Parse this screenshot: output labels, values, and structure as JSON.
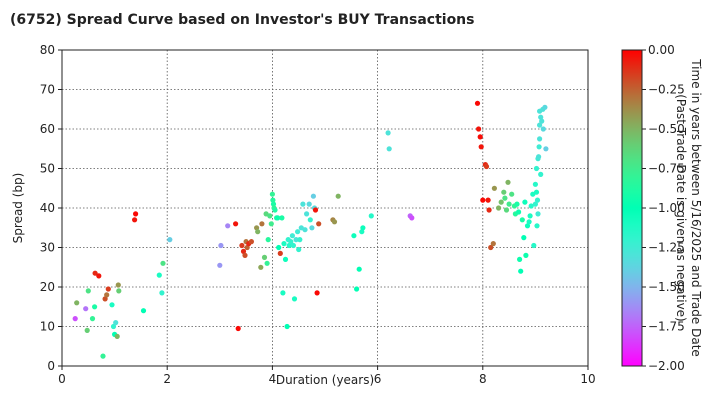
{
  "chart_data": {
    "type": "scatter",
    "title": "(6752)   Spread Curve based on Investor's BUY Transactions",
    "xlabel": "Duration (years)",
    "ylabel": "Spread (bp)",
    "xlim": [
      0,
      10
    ],
    "ylim": [
      0,
      80
    ],
    "x_ticks": [
      "0",
      "2",
      "4",
      "6",
      "8",
      "10"
    ],
    "y_ticks": [
      "0",
      "10",
      "20",
      "30",
      "40",
      "50",
      "60",
      "70",
      "80"
    ],
    "grid": true,
    "colorbar": {
      "label_line1": "Time in years between 5/16/2025 and Trade Date",
      "label_line2": "(Past Trade Date is given as negative)",
      "range": [
        -2.0,
        0.0
      ],
      "ticks": [
        "0.00",
        "−0.25",
        "−0.50",
        "−0.75",
        "−1.00",
        "−1.25",
        "−1.50",
        "−1.75",
        "−2.00"
      ],
      "colormap": "rainbow"
    },
    "points": [
      [
        0.25,
        12.0,
        -1.8
      ],
      [
        0.28,
        16.0,
        -0.5
      ],
      [
        0.45,
        14.5,
        -1.7
      ],
      [
        0.48,
        9.0,
        -0.6
      ],
      [
        0.5,
        19.0,
        -0.7
      ],
      [
        0.58,
        12.0,
        -0.8
      ],
      [
        0.62,
        15.0,
        -0.9
      ],
      [
        0.63,
        23.5,
        -0.1
      ],
      [
        0.7,
        22.8,
        -0.05
      ],
      [
        0.78,
        2.5,
        -0.8
      ],
      [
        0.82,
        17.0,
        -0.2
      ],
      [
        0.85,
        18.0,
        -0.3
      ],
      [
        0.88,
        19.5,
        -0.15
      ],
      [
        0.95,
        15.5,
        -1.1
      ],
      [
        0.98,
        10.0,
        -1.2
      ],
      [
        1.0,
        8.0,
        -1.0
      ],
      [
        1.02,
        11.0,
        -1.3
      ],
      [
        1.05,
        7.5,
        -0.5
      ],
      [
        1.07,
        20.5,
        -0.4
      ],
      [
        1.08,
        19.0,
        -0.6
      ],
      [
        1.38,
        37.0,
        -0.05
      ],
      [
        1.4,
        38.5,
        -0.02
      ],
      [
        1.55,
        14.0,
        -1.0
      ],
      [
        1.85,
        23.0,
        -1.1
      ],
      [
        1.9,
        18.5,
        -1.2
      ],
      [
        1.92,
        26.0,
        -0.7
      ],
      [
        2.05,
        32.0,
        -1.4
      ],
      [
        3.0,
        25.5,
        -1.6
      ],
      [
        3.02,
        30.5,
        -1.6
      ],
      [
        3.15,
        35.5,
        -1.65
      ],
      [
        3.3,
        36.0,
        -0.05
      ],
      [
        3.35,
        9.5,
        -0.02
      ],
      [
        3.42,
        30.5,
        -0.15
      ],
      [
        3.45,
        29.0,
        -0.1
      ],
      [
        3.48,
        28.0,
        -0.2
      ],
      [
        3.5,
        31.5,
        -0.3
      ],
      [
        3.52,
        30.0,
        -0.25
      ],
      [
        3.55,
        31.0,
        -0.1
      ],
      [
        3.6,
        31.5,
        -0.2
      ],
      [
        3.7,
        35.0,
        -0.4
      ],
      [
        3.72,
        34.0,
        -0.5
      ],
      [
        3.78,
        25.0,
        -0.45
      ],
      [
        3.8,
        36.0,
        -0.3
      ],
      [
        3.85,
        27.5,
        -0.6
      ],
      [
        3.88,
        38.5,
        -0.65
      ],
      [
        3.9,
        26.0,
        -0.8
      ],
      [
        3.92,
        32.0,
        -0.85
      ],
      [
        3.95,
        38.0,
        -0.7
      ],
      [
        3.98,
        36.0,
        -0.75
      ],
      [
        4.0,
        43.5,
        -0.8
      ],
      [
        4.01,
        42.0,
        -0.85
      ],
      [
        4.02,
        41.0,
        -0.9
      ],
      [
        4.03,
        40.0,
        -0.82
      ],
      [
        4.05,
        39.5,
        -0.88
      ],
      [
        4.08,
        37.5,
        -0.9
      ],
      [
        4.1,
        37.5,
        -0.95
      ],
      [
        4.12,
        30.0,
        -1.0
      ],
      [
        4.15,
        28.5,
        -0.15
      ],
      [
        4.18,
        37.5,
        -0.9
      ],
      [
        4.2,
        18.5,
        -1.1
      ],
      [
        4.22,
        31.0,
        -1.1
      ],
      [
        4.25,
        27.0,
        -1.05
      ],
      [
        4.28,
        10.0,
        -1.0
      ],
      [
        4.3,
        32.0,
        -1.2
      ],
      [
        4.32,
        30.5,
        -1.15
      ],
      [
        4.35,
        31.5,
        -1.2
      ],
      [
        4.38,
        33.0,
        -1.25
      ],
      [
        4.4,
        30.5,
        -1.2
      ],
      [
        4.42,
        17.0,
        -1.1
      ],
      [
        4.45,
        32.0,
        -1.3
      ],
      [
        4.48,
        34.0,
        -1.25
      ],
      [
        4.5,
        29.5,
        -1.2
      ],
      [
        4.52,
        32.0,
        -1.2
      ],
      [
        4.55,
        35.0,
        -1.3
      ],
      [
        4.58,
        41.0,
        -1.3
      ],
      [
        4.62,
        34.5,
        -1.3
      ],
      [
        4.65,
        38.5,
        -1.3
      ],
      [
        4.7,
        41.0,
        -1.35
      ],
      [
        4.72,
        37.0,
        -1.2
      ],
      [
        4.75,
        35.0,
        -1.35
      ],
      [
        4.78,
        43.0,
        -1.4
      ],
      [
        4.8,
        40.0,
        -1.35
      ],
      [
        4.82,
        39.5,
        -0.05
      ],
      [
        4.85,
        18.5,
        -0.02
      ],
      [
        4.88,
        36.0,
        -0.2
      ],
      [
        5.15,
        37.0,
        -0.35
      ],
      [
        5.18,
        36.5,
        -0.4
      ],
      [
        5.25,
        43.0,
        -0.5
      ],
      [
        5.55,
        33.0,
        -1.05
      ],
      [
        5.6,
        19.5,
        -1.0
      ],
      [
        5.65,
        24.5,
        -1.0
      ],
      [
        5.7,
        34.0,
        -1.1
      ],
      [
        5.72,
        35.0,
        -1.05
      ],
      [
        5.88,
        38.0,
        -1.15
      ],
      [
        6.2,
        59.0,
        -1.3
      ],
      [
        6.22,
        55.0,
        -1.3
      ],
      [
        6.62,
        38.0,
        -1.75
      ],
      [
        6.65,
        37.5,
        -1.8
      ],
      [
        7.9,
        66.5,
        -0.02
      ],
      [
        7.92,
        60.0,
        -0.05
      ],
      [
        7.95,
        58.0,
        -0.03
      ],
      [
        7.97,
        55.5,
        -0.05
      ],
      [
        8.0,
        42.0,
        -0.02
      ],
      [
        8.05,
        51.0,
        -0.1
      ],
      [
        8.07,
        50.5,
        -0.15
      ],
      [
        8.1,
        42.0,
        -0.05
      ],
      [
        8.12,
        39.5,
        -0.1
      ],
      [
        8.15,
        30.0,
        -0.2
      ],
      [
        8.2,
        31.0,
        -0.3
      ],
      [
        8.22,
        45.0,
        -0.4
      ],
      [
        8.3,
        40.0,
        -0.5
      ],
      [
        8.35,
        41.5,
        -0.55
      ],
      [
        8.4,
        44.0,
        -0.6
      ],
      [
        8.42,
        42.5,
        -0.7
      ],
      [
        8.45,
        39.5,
        -0.65
      ],
      [
        8.48,
        46.5,
        -0.5
      ],
      [
        8.5,
        41.0,
        -0.75
      ],
      [
        8.55,
        43.5,
        -0.7
      ],
      [
        8.6,
        40.5,
        -0.8
      ],
      [
        8.62,
        38.5,
        -0.85
      ],
      [
        8.65,
        41.0,
        -0.9
      ],
      [
        8.68,
        39.0,
        -0.95
      ],
      [
        8.7,
        27.0,
        -0.95
      ],
      [
        8.72,
        24.0,
        -1.0
      ],
      [
        8.75,
        37.0,
        -0.9
      ],
      [
        8.78,
        32.5,
        -1.0
      ],
      [
        8.8,
        41.5,
        -1.05
      ],
      [
        8.82,
        28.0,
        -0.95
      ],
      [
        8.85,
        35.5,
        -1.05
      ],
      [
        8.88,
        36.5,
        -1.1
      ],
      [
        8.9,
        38.0,
        -1.1
      ],
      [
        8.92,
        40.5,
        -1.15
      ],
      [
        8.95,
        43.5,
        -1.1
      ],
      [
        8.97,
        30.5,
        -1.15
      ],
      [
        9.0,
        41.0,
        -1.2
      ],
      [
        9.0,
        46.0,
        -1.15
      ],
      [
        9.02,
        50.0,
        -1.2
      ],
      [
        9.02,
        44.0,
        -1.1
      ],
      [
        9.04,
        42.0,
        -1.2
      ],
      [
        9.05,
        38.5,
        -1.25
      ],
      [
        9.05,
        52.5,
        -1.25
      ],
      [
        9.06,
        53.0,
        -1.3
      ],
      [
        9.07,
        55.5,
        -1.25
      ],
      [
        9.08,
        57.5,
        -1.3
      ],
      [
        9.08,
        61.0,
        -1.3
      ],
      [
        9.1,
        63.0,
        -1.3
      ],
      [
        9.12,
        62.0,
        -1.3
      ],
      [
        9.14,
        65.0,
        -1.3
      ],
      [
        9.15,
        60.0,
        -1.35
      ],
      [
        9.18,
        65.5,
        -1.35
      ],
      [
        9.2,
        55.0,
        -1.4
      ],
      [
        9.1,
        48.5,
        -1.2
      ],
      [
        9.03,
        35.5,
        -1.15
      ],
      [
        9.08,
        64.5,
        -1.3
      ]
    ]
  }
}
